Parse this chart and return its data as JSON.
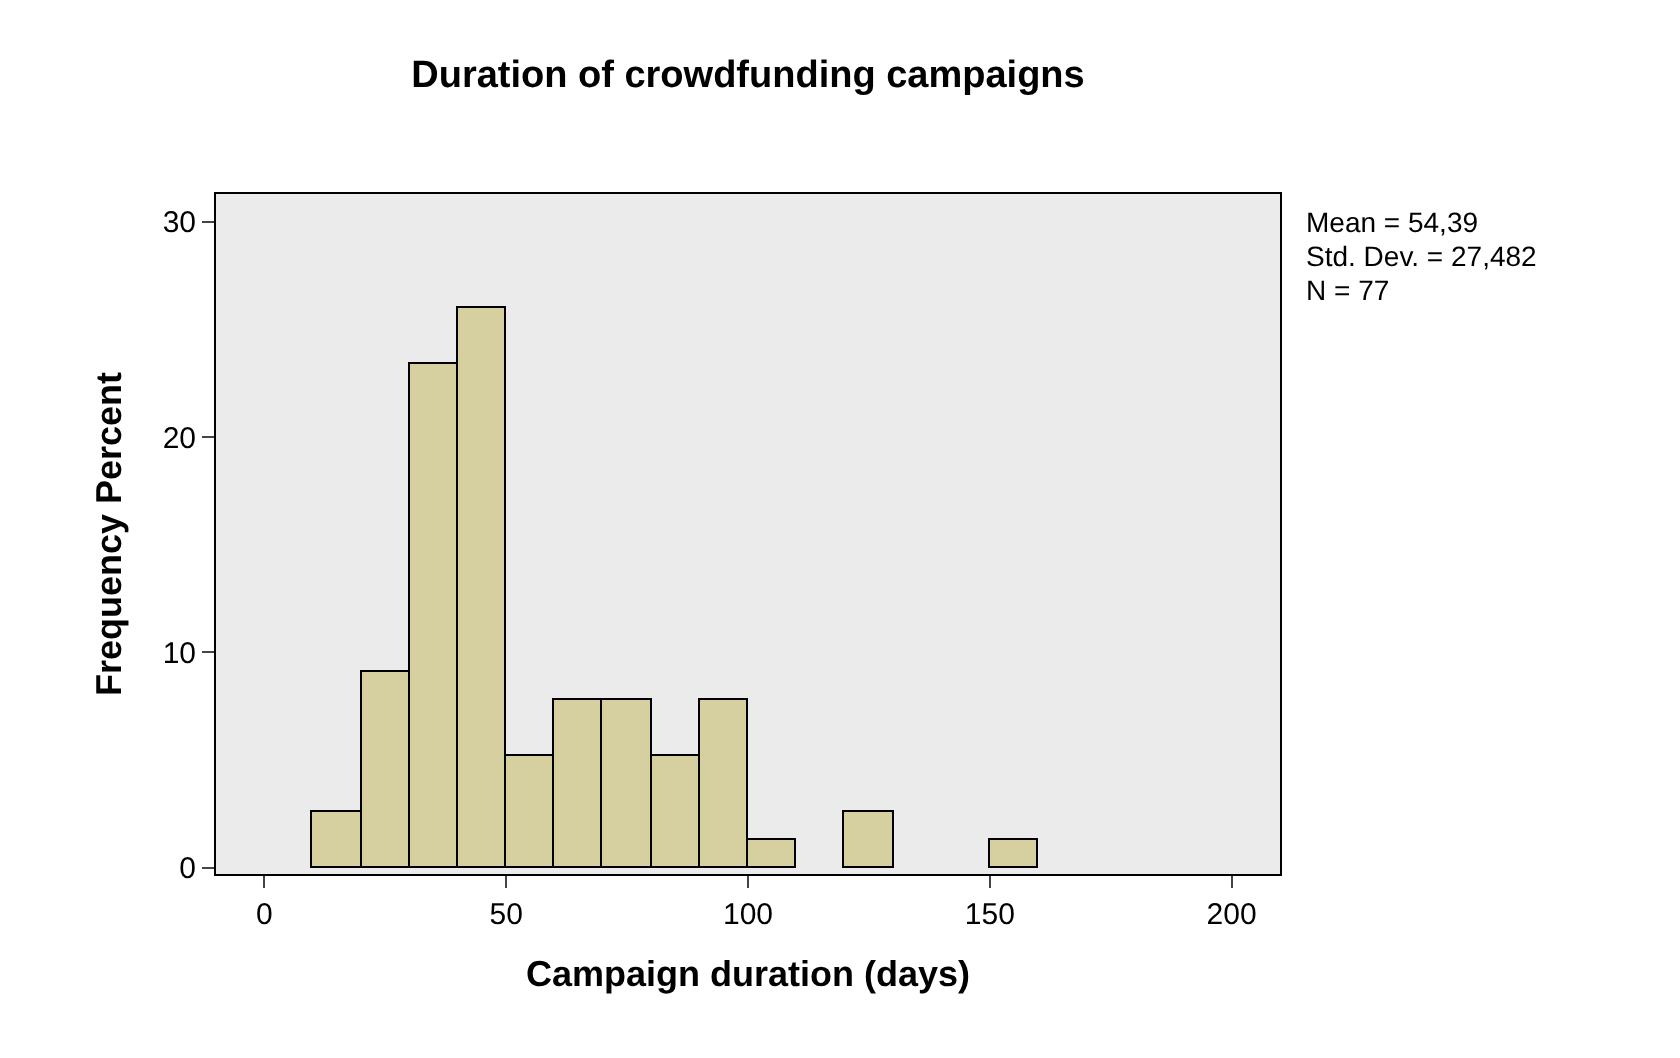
{
  "chart_data": {
    "type": "histogram",
    "title": "Duration of crowdfunding campaigns",
    "xlabel": "Campaign duration (days)",
    "ylabel": "Frequency Percent",
    "bins": [
      10,
      20,
      30,
      40,
      50,
      60,
      70,
      80,
      90,
      100,
      110,
      120,
      130,
      140,
      150,
      160
    ],
    "values": [
      2.6,
      9.1,
      23.4,
      26.0,
      5.2,
      7.8,
      7.8,
      5.2,
      7.8,
      1.3,
      0,
      2.6,
      0,
      0,
      1.3
    ],
    "color": "#d6d0a0",
    "xlim": [
      -10,
      210
    ],
    "xticks": [
      0,
      50,
      100,
      150,
      200
    ],
    "ylim": [
      -0.3,
      31.3
    ],
    "yticks": [
      0,
      10,
      20,
      30
    ],
    "grid": false,
    "annotations": [
      "Mean = 54,39",
      "Std. Dev. = 27,482",
      "N = 77"
    ]
  }
}
